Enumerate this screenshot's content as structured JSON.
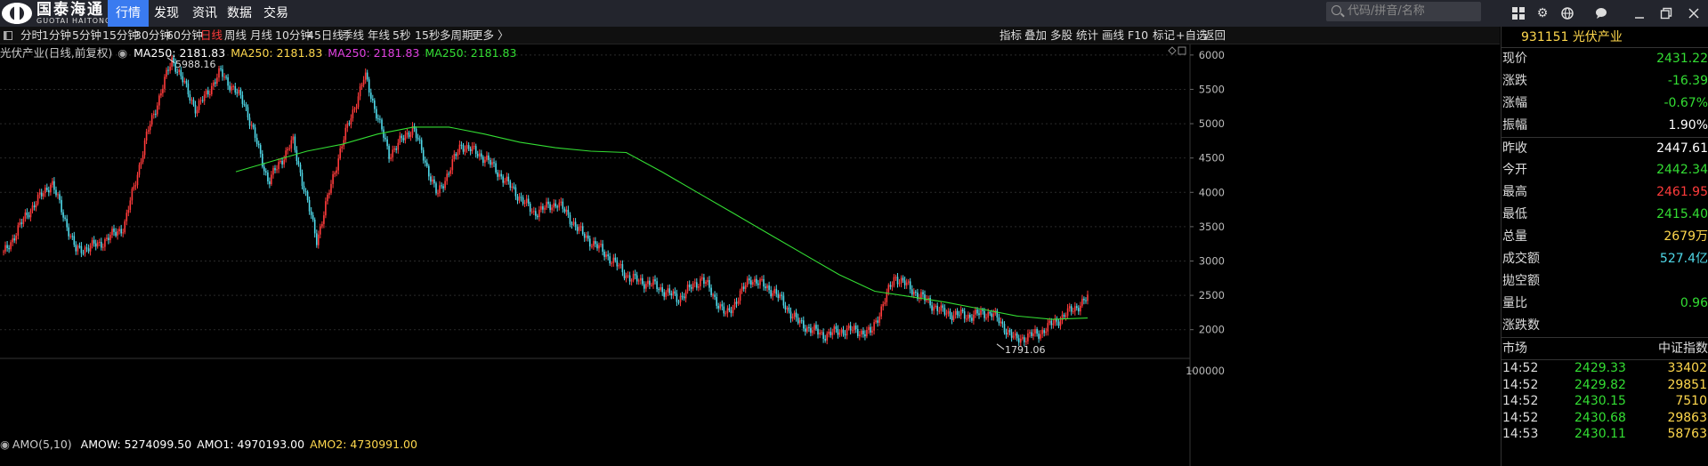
{
  "topbar": {
    "logo_cn": "国泰海通",
    "logo_en": "GUOTAI HAITONG",
    "nav": [
      "行情",
      "发现",
      "资讯",
      "数据",
      "交易"
    ],
    "search_placeholder": "代码/拼音/名称"
  },
  "period_toolbar": {
    "items": [
      "分时",
      "1分钟",
      "5分钟",
      "15分钟",
      "30分钟",
      "60分钟",
      "日线",
      "周线",
      "月线",
      "10分钟",
      "45日线",
      "季线",
      "年线",
      "5秒",
      "15秒",
      "多周期",
      "更多 〉"
    ],
    "active": "日线",
    "right_items": [
      "指标",
      "叠加",
      "多股",
      "统计",
      "画线",
      "F10",
      "标记",
      "+自选",
      "返回"
    ]
  },
  "chart_legend": {
    "name": "光伏产业(日线,前复权)",
    "ma_items": [
      {
        "text": "MA250: 2181.83",
        "color": "#ffffff"
      },
      {
        "text": "MA250: 2181.83",
        "color": "#ffd84d"
      },
      {
        "text": "MA250: 2181.83",
        "color": "#e040e0"
      },
      {
        "text": "MA250: 2181.83",
        "color": "#33dd33"
      }
    ]
  },
  "amo_legend": {
    "name": "AMO(5,10)",
    "items": [
      {
        "text": "AMOW: 5274099.50",
        "color": "#ffffff"
      },
      {
        "text": "AMO1: 4970193.00",
        "color": "#ffffff"
      },
      {
        "text": "AMO2: 4730991.00",
        "color": "#ffd84d"
      }
    ],
    "axis_label": "100000"
  },
  "chart_data": {
    "type": "line",
    "title": "光伏产业(日线,前复权)",
    "y_ticks": [
      6000,
      5500,
      5000,
      4500,
      4000,
      3500,
      3000,
      2500,
      2000
    ],
    "ylim": [
      1750,
      6050
    ],
    "high_label": "5988.16",
    "low_label": "1791.06",
    "series": [
      {
        "name": "MA250",
        "color": "#33dd33",
        "values": [
          4300,
          4450,
          4600,
          4700,
          4850,
          4950,
          4950,
          4850,
          4730,
          4650,
          4600,
          4580,
          4300,
          4000,
          3700,
          3400,
          3100,
          2800,
          2560,
          2480,
          2400,
          2300,
          2200,
          2150,
          2170
        ]
      },
      {
        "name": "",
        "color": "#4fd8e8",
        "values": [
          3100,
          3700,
          4150,
          3150,
          3250,
          3500,
          4900,
          5950,
          5200,
          5750,
          5300,
          4150,
          4750,
          3300,
          4650,
          5700,
          4550,
          4950,
          3950,
          4700,
          4500,
          4100,
          3700,
          3850,
          3400,
          3100,
          2750,
          2650,
          2450,
          2750,
          2200,
          2750,
          2550,
          2100,
          1920,
          2000,
          1950,
          2780,
          2500,
          2250,
          2200,
          2250,
          1850,
          1950,
          2200,
          2450
        ]
      }
    ]
  },
  "right_panel": {
    "title": "931151 光伏产业",
    "quotes": [
      {
        "label": "现价",
        "value": "2431.22",
        "color": "#33dd33"
      },
      {
        "label": "涨跌",
        "value": "-16.39",
        "color": "#33dd33"
      },
      {
        "label": "涨幅",
        "value": "-0.67%",
        "color": "#33dd33"
      },
      {
        "label": "振幅",
        "value": "1.90%",
        "color": "#ffffff"
      },
      {
        "label": "昨收",
        "value": "2447.61",
        "color": "#ffffff"
      },
      {
        "label": "今开",
        "value": "2442.34",
        "color": "#33dd33"
      },
      {
        "label": "最高",
        "value": "2461.95",
        "color": "#ff3b3b"
      },
      {
        "label": "最低",
        "value": "2415.40",
        "color": "#33dd33"
      },
      {
        "label": "总量",
        "value": "2679万",
        "color": "#ffd84d"
      },
      {
        "label": "成交额",
        "value": "527.4亿",
        "color": "#4fd8e8"
      },
      {
        "label": "拋空额",
        "value": "",
        "color": "#ffffff"
      },
      {
        "label": "量比",
        "value": "0.96",
        "color": "#33dd33"
      },
      {
        "label": "涨跌数",
        "value": "",
        "color": "#ffffff"
      }
    ],
    "market_label": "市场",
    "market_value": "中证指数",
    "ticks": [
      {
        "time": "14:52",
        "price": "2429.33",
        "vol": "33402"
      },
      {
        "time": "14:52",
        "price": "2429.82",
        "vol": "29851"
      },
      {
        "time": "14:52",
        "price": "2430.15",
        "vol": "7510"
      },
      {
        "time": "14:52",
        "price": "2430.68",
        "vol": "29863"
      },
      {
        "time": "14:53",
        "price": "2430.11",
        "vol": "58763"
      }
    ]
  }
}
